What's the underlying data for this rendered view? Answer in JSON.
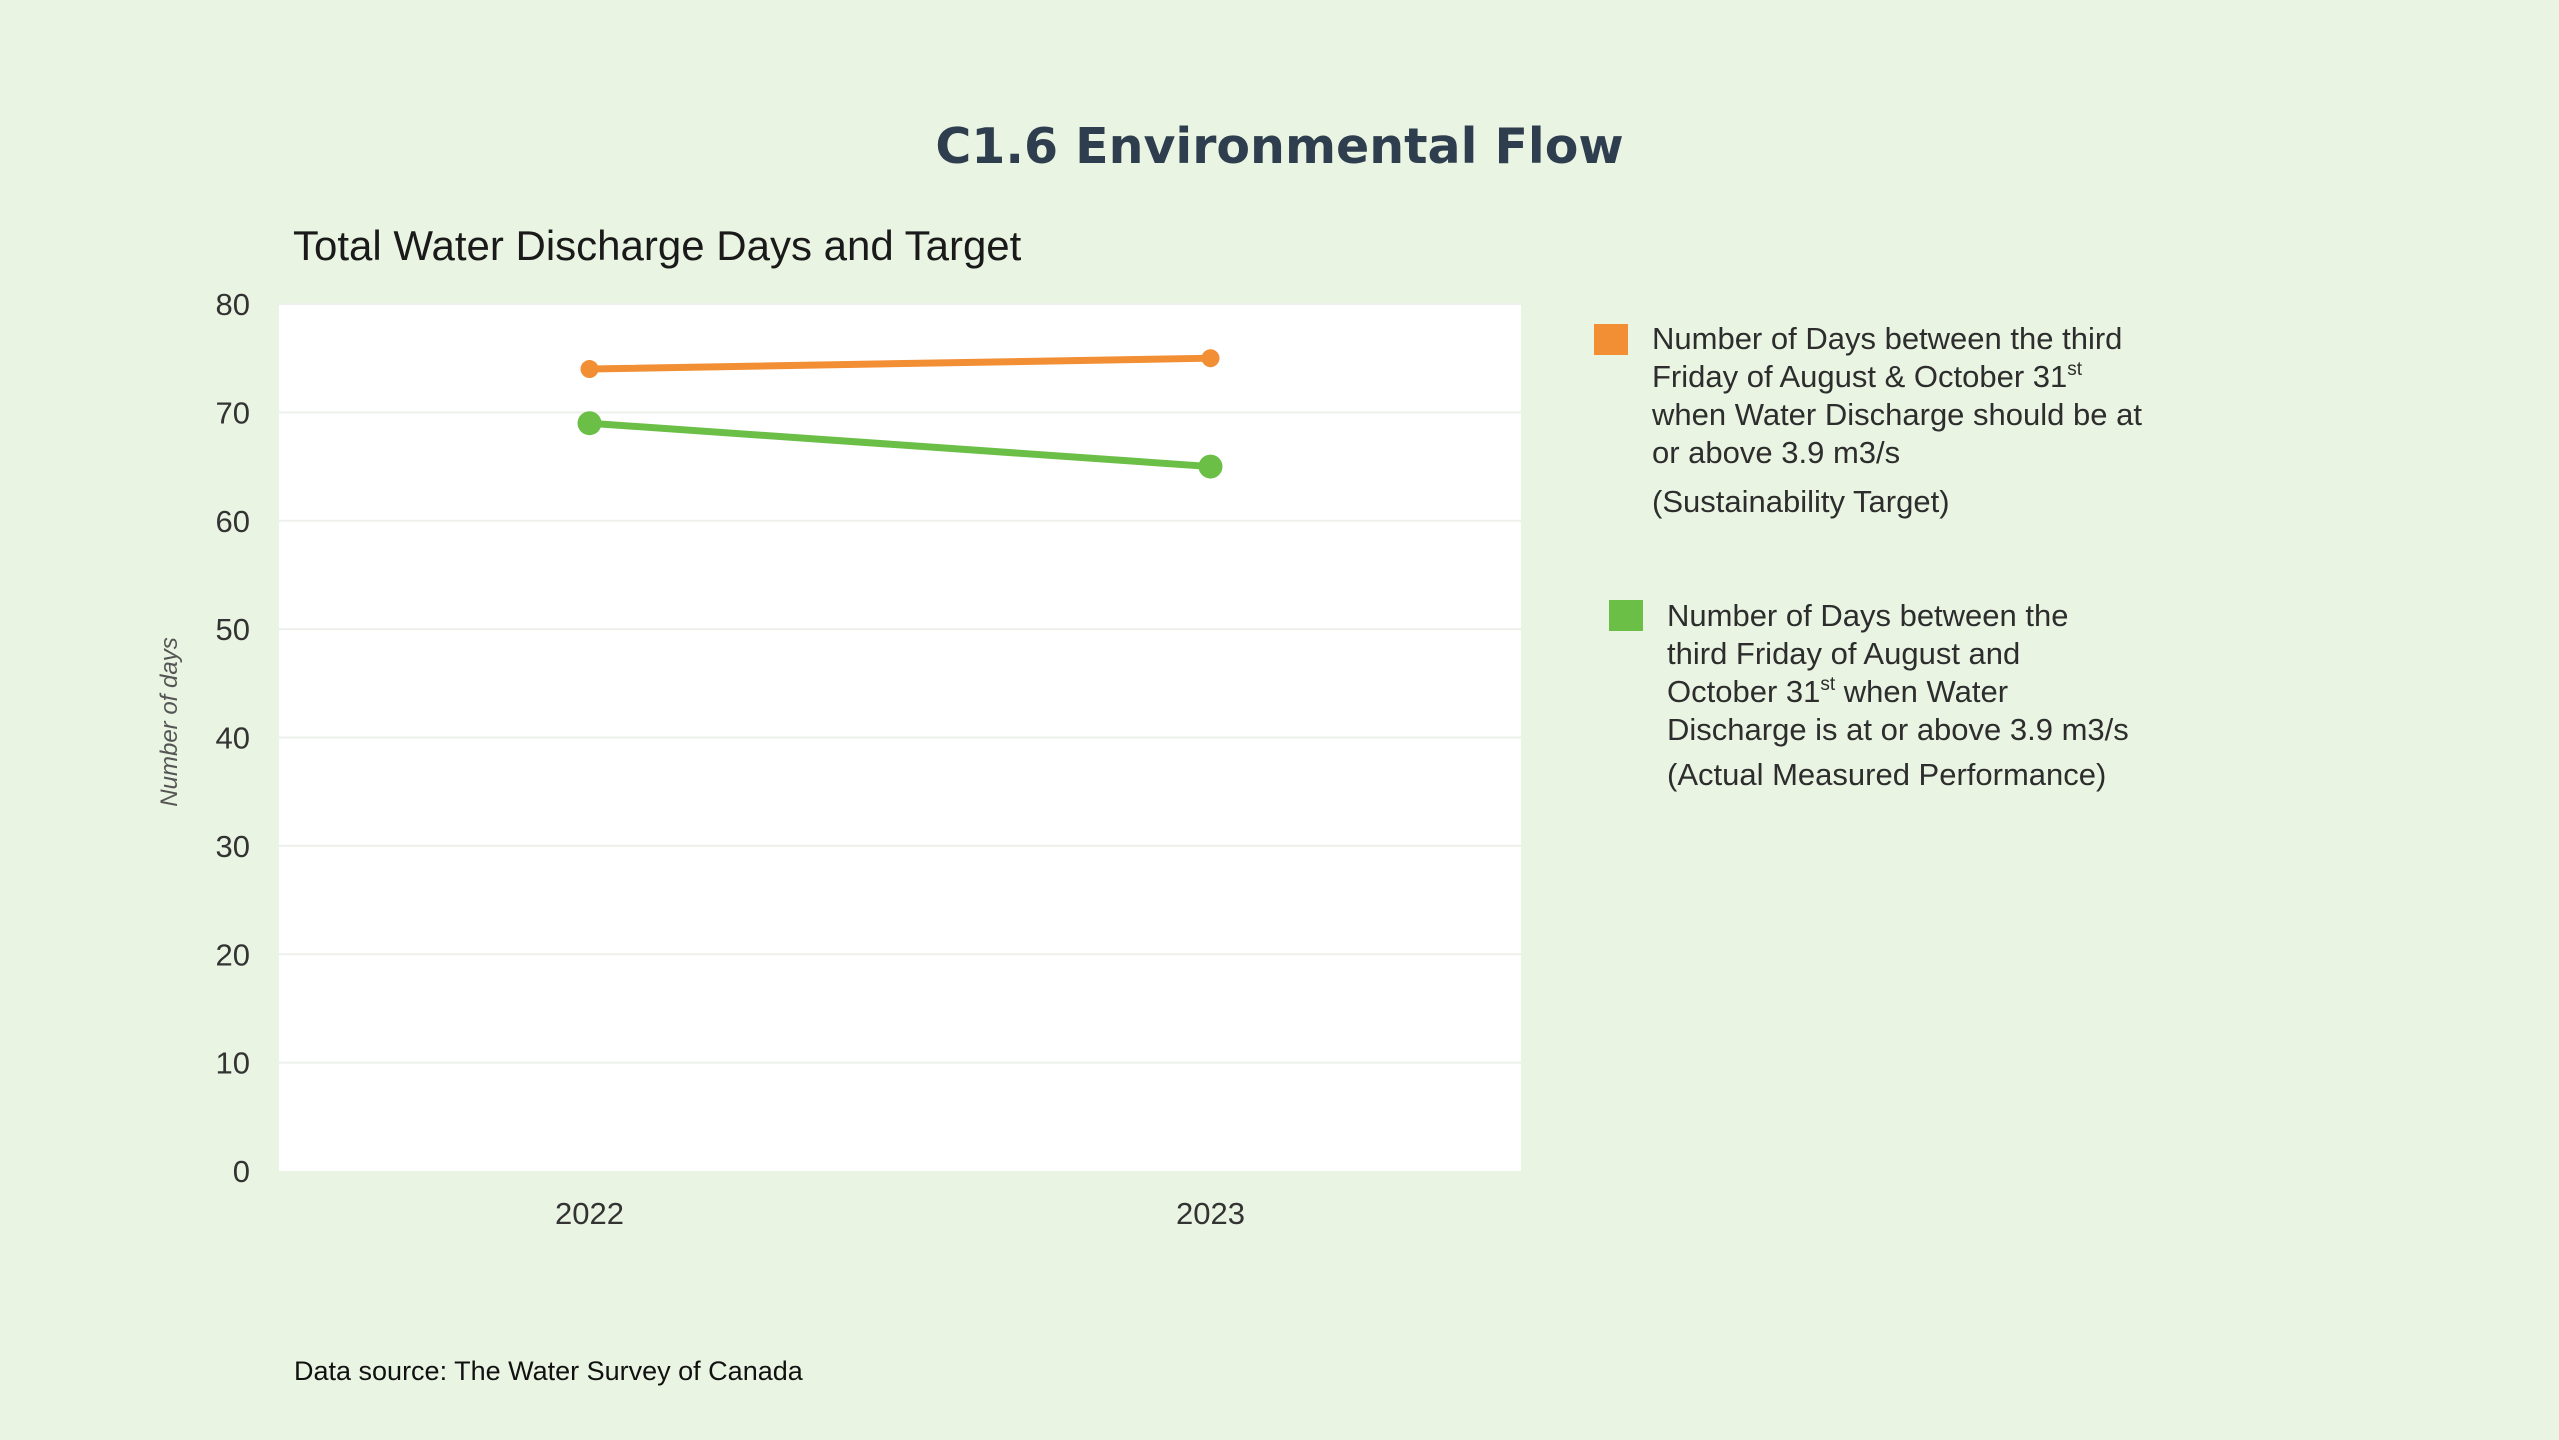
{
  "page": {
    "title": "C1.6 Environmental Flow",
    "source": "Data source: The Water Survey of Canada"
  },
  "chart_data": {
    "type": "line",
    "title": "Total Water Discharge Days and Target",
    "ylabel": "Number of days",
    "xlabel": "",
    "categories": [
      "2022",
      "2023"
    ],
    "ylim": [
      0,
      80
    ],
    "yticks": [
      0,
      10,
      20,
      30,
      40,
      50,
      60,
      70,
      80
    ],
    "grid": true,
    "legend_position": "right",
    "series": [
      {
        "id": "target",
        "values": [
          74,
          75
        ],
        "color": "#f28e33",
        "legend_lines": [
          "Number of Days between the third",
          "Friday of August & October 31",
          "when Water Discharge should be at",
          "or above 3.9 m3/s"
        ],
        "legend_sup": "st",
        "legend_note": "(Sustainability Target)"
      },
      {
        "id": "actual",
        "values": [
          69,
          65
        ],
        "color": "#6bbf47",
        "legend_lines": [
          "Number of Days between the",
          "third Friday of August and",
          "October 31",
          "Discharge is at or above 3.9 m3/s"
        ],
        "legend_sup": "st",
        "legend_sup_after": " when Water",
        "legend_note": "(Actual Measured Performance)"
      }
    ]
  }
}
